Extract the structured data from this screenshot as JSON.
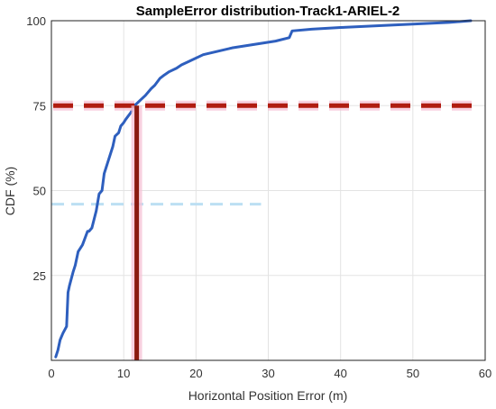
{
  "chart_data": {
    "type": "line",
    "title": "SampleError distribution-Track1-ARIEL-2",
    "xlabel": "Horizontal Position Error (m)",
    "ylabel": "CDF (%)",
    "xlim": [
      0,
      60
    ],
    "ylim": [
      0,
      100
    ],
    "xticks": [
      0,
      10,
      20,
      30,
      40,
      50,
      60
    ],
    "yticks": [
      25,
      50,
      75,
      100
    ],
    "xtick_labels": [
      "0",
      "10",
      "20",
      "30",
      "40",
      "50",
      "60"
    ],
    "ytick_labels": [
      "25",
      "50",
      "75",
      "100"
    ],
    "grid": true,
    "series": [
      {
        "color": "#2e5fbe",
        "x": [
          0.6,
          0.9,
          1.2,
          1.6,
          2.1,
          2.3,
          2.5,
          3.0,
          3.3,
          3.7,
          4.3,
          5.0,
          5.2,
          5.6,
          6.2,
          6.6,
          7.0,
          7.3,
          7.6,
          7.9,
          8.5,
          8.8,
          9.3,
          9.6,
          10.0,
          10.3,
          11.0,
          11.5,
          12.0,
          12.5,
          13.0,
          13.8,
          14.3,
          15.0,
          15.6,
          16.3,
          17.3,
          18.0,
          19.0,
          21.0,
          23.0,
          25.0,
          28.0,
          31.0,
          32.9,
          33.1,
          33.3,
          36.0,
          40.0,
          45.0,
          50.0,
          55.0,
          58.0
        ],
        "y": [
          1,
          3,
          6,
          8,
          10,
          20,
          22,
          26,
          28,
          32,
          34,
          38,
          38,
          39,
          44,
          49,
          50,
          55,
          57,
          59,
          63,
          66,
          67,
          69,
          70,
          71,
          73,
          75,
          76,
          77,
          78,
          80,
          81,
          83,
          84,
          85,
          86,
          87,
          88,
          90,
          91,
          92,
          93,
          94,
          95,
          96,
          97,
          97.5,
          98,
          98.5,
          99,
          99.5,
          100
        ]
      }
    ],
    "reference_lines": [
      {
        "orientation": "horizontal",
        "y": 75,
        "color": "#b01c10",
        "style": "dashed"
      },
      {
        "orientation": "vertical",
        "x": 11.8,
        "color": "#8b1a10",
        "style": "solid"
      }
    ],
    "faint_reference_line": {
      "orientation": "horizontal",
      "y": 46,
      "x_range": [
        0,
        29
      ],
      "color": "#bcdff3",
      "style": "dashed"
    }
  }
}
